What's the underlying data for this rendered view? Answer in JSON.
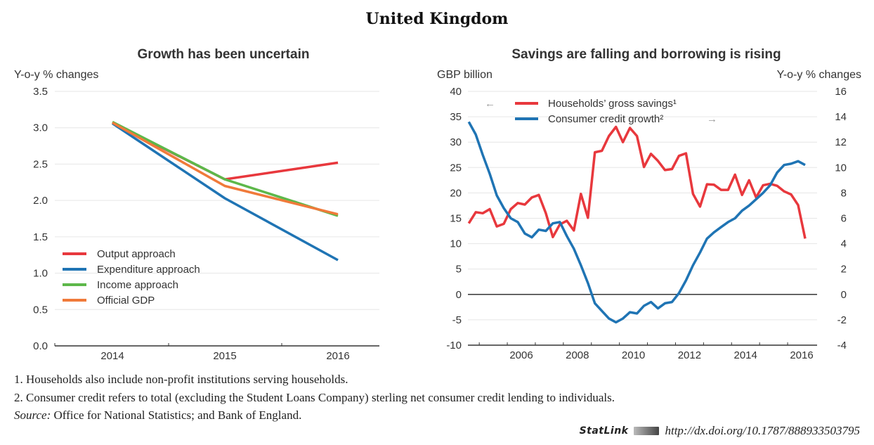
{
  "page_title": "United Kingdom",
  "footnotes": [
    "1.  Households also include non-profit institutions serving households.",
    "2.  Consumer credit refers to total (excluding the Student Loans Company) sterling net consumer credit lending to individuals."
  ],
  "source_label": "Source:",
  "source_text": " Office for National Statistics; and Bank of England.",
  "statlink": {
    "label": "StatLink",
    "url": "http://dx.doi.org/10.1787/888933503795"
  },
  "chart_data": [
    {
      "type": "line",
      "title": "Growth has been uncertain",
      "ylabel": "Y-o-y % changes",
      "xlabel": "",
      "x": [
        2014,
        2015,
        2016
      ],
      "categories": [
        "2014",
        "2015",
        "2016"
      ],
      "ylim": [
        0.0,
        3.5
      ],
      "yticks": [
        "0.0",
        "0.5",
        "1.0",
        "1.5",
        "2.0",
        "2.5",
        "3.0",
        "3.5"
      ],
      "grid": true,
      "legend_position": "bottom-left",
      "series": [
        {
          "name": "Output approach",
          "color": "#e8383d",
          "values": [
            3.07,
            2.29,
            2.52
          ]
        },
        {
          "name": "Expenditure approach",
          "color": "#1f74b4",
          "values": [
            3.06,
            2.03,
            1.18
          ]
        },
        {
          "name": "Income approach",
          "color": "#5db84a",
          "values": [
            3.08,
            2.29,
            1.79
          ]
        },
        {
          "name": "Official GDP",
          "color": "#f07a3a",
          "values": [
            3.07,
            2.2,
            1.81
          ]
        }
      ]
    },
    {
      "type": "line",
      "title": "Savings are falling and borrowing is rising",
      "ylabel": "GBP billion",
      "ylabel_right": "Y-o-y % changes",
      "xlabel": "",
      "xticks": [
        "2006",
        "2008",
        "2010",
        "2012",
        "2014",
        "2016"
      ],
      "xlim": [
        2004.5,
        2016.75
      ],
      "ylim": [
        -10,
        40
      ],
      "ylim_right": [
        -4,
        16
      ],
      "yticks": [
        "-10",
        "-5",
        "0",
        "5",
        "10",
        "15",
        "20",
        "25",
        "30",
        "35",
        "40"
      ],
      "yticks_right": [
        "-4",
        "-2",
        "0",
        "2",
        "4",
        "6",
        "8",
        "10",
        "12",
        "14",
        "16"
      ],
      "grid": true,
      "legend_position": "top-left",
      "legend_arrows": {
        "left": "←",
        "right": "→"
      },
      "series": [
        {
          "name": "Households’ gross savings¹",
          "color": "#e8383d",
          "axis": "left",
          "x_start": 2004.625,
          "x_step": 0.25,
          "values": [
            14.0,
            16.2,
            16.0,
            16.8,
            13.4,
            13.9,
            16.8,
            18.0,
            17.7,
            19.1,
            19.6,
            16.0,
            11.3,
            13.8,
            14.5,
            12.6,
            19.8,
            15.1,
            28.0,
            28.3,
            31.2,
            33.0,
            30.0,
            32.8,
            31.2,
            25.1,
            27.7,
            26.3,
            24.5,
            24.7,
            27.3,
            27.8,
            19.8,
            17.3,
            21.7,
            21.6,
            20.6,
            20.6,
            23.6,
            19.6,
            22.5,
            19.1,
            21.5,
            21.8,
            21.4,
            20.3,
            19.7,
            17.6,
            11.0
          ]
        },
        {
          "name": "Consumer credit growth²",
          "color": "#1f74b4",
          "axis": "right",
          "x_start": 2004.625,
          "x_step": 0.25,
          "values": [
            13.6,
            12.6,
            11.0,
            9.5,
            7.8,
            6.8,
            6.0,
            5.7,
            4.8,
            4.5,
            5.1,
            5.0,
            5.6,
            5.7,
            4.6,
            3.6,
            2.3,
            0.9,
            -0.7,
            -1.3,
            -1.9,
            -2.2,
            -1.9,
            -1.4,
            -1.5,
            -0.9,
            -0.6,
            -1.1,
            -0.7,
            -0.6,
            0.1,
            1.1,
            2.3,
            3.3,
            4.4,
            4.9,
            5.3,
            5.7,
            6.0,
            6.6,
            7.0,
            7.5,
            8.0,
            8.6,
            9.6,
            10.2,
            10.3,
            10.5,
            10.2
          ]
        }
      ]
    }
  ]
}
